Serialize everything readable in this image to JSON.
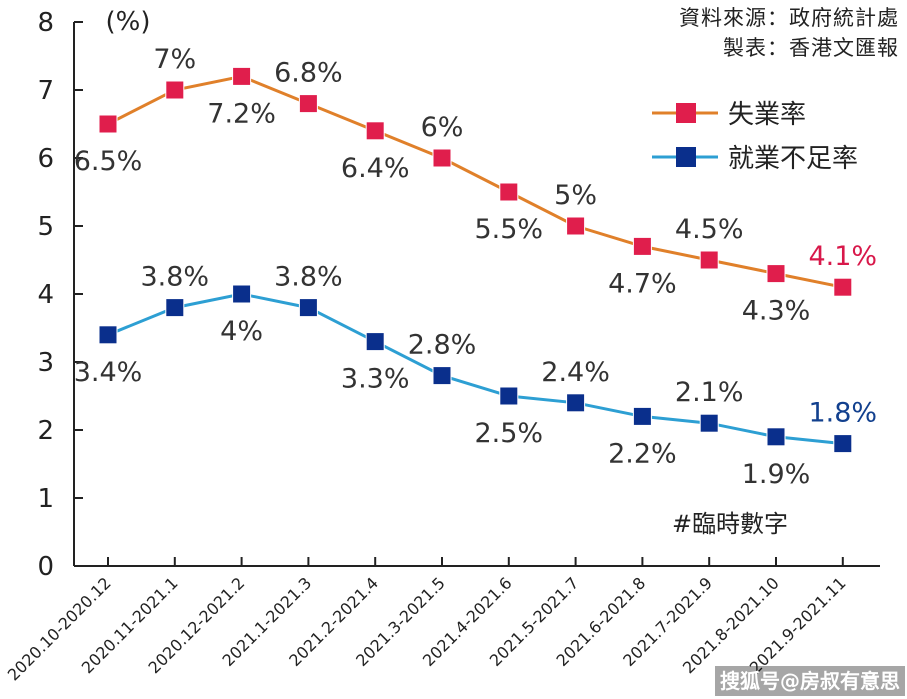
{
  "source_line": "資料來源：政府統計處",
  "maker_line": "製表：香港文匯報",
  "chart_data": {
    "type": "line",
    "title": "",
    "ylabel": "(%)",
    "xlabel": "",
    "ylim": [
      0,
      8
    ],
    "yticks": [
      "0",
      "1",
      "2",
      "3",
      "4",
      "5",
      "6",
      "7",
      "8"
    ],
    "categories": [
      "2020.10-2020.12",
      "2020.11-2021.1",
      "2020.12-2021.2",
      "2021.1-2021.3",
      "2021.2-2021.4",
      "2021.3-2021.5",
      "2021.4-2021.6",
      "2021.5-2021.7",
      "2021.6-2021.8",
      "2021.7-2021.9",
      "2021.8-2021.10",
      "2021.9-2021.11"
    ],
    "series": [
      {
        "name": "失業率",
        "color": "#e0802a",
        "marker_color": "#e01e4c",
        "last_label_color": "#d8184a",
        "values": [
          6.5,
          7.0,
          7.2,
          6.8,
          6.4,
          6.0,
          5.5,
          5.0,
          4.7,
          4.5,
          4.3,
          4.1
        ],
        "labels": [
          "6.5%",
          "7%",
          "7.2%",
          "6.8%",
          "6.4%",
          "6%",
          "5.5%",
          "5%",
          "4.7%",
          "4.5%",
          "4.3%",
          "4.1%"
        ],
        "label_pos": [
          "below",
          "above",
          "below",
          "above",
          "below",
          "above",
          "below",
          "above",
          "below",
          "above",
          "below",
          "above"
        ]
      },
      {
        "name": "就業不足率",
        "color": "#2d9fd3",
        "marker_color": "#0a2f8c",
        "last_label_color": "#12408e",
        "values": [
          3.4,
          3.8,
          4.0,
          3.8,
          3.3,
          2.8,
          2.5,
          2.4,
          2.2,
          2.1,
          1.9,
          1.8
        ],
        "labels": [
          "3.4%",
          "3.8%",
          "4%",
          "3.8%",
          "3.3%",
          "2.8%",
          "2.5%",
          "2.4%",
          "2.2%",
          "2.1%",
          "1.9%",
          "1.8%"
        ],
        "label_pos": [
          "below",
          "above",
          "below",
          "above",
          "below",
          "above",
          "below",
          "above",
          "below",
          "above",
          "below",
          "above"
        ]
      }
    ],
    "legend_position": "top-right",
    "annotation": "#臨時數字"
  },
  "watermark": "搜狐号@房叔有意思"
}
